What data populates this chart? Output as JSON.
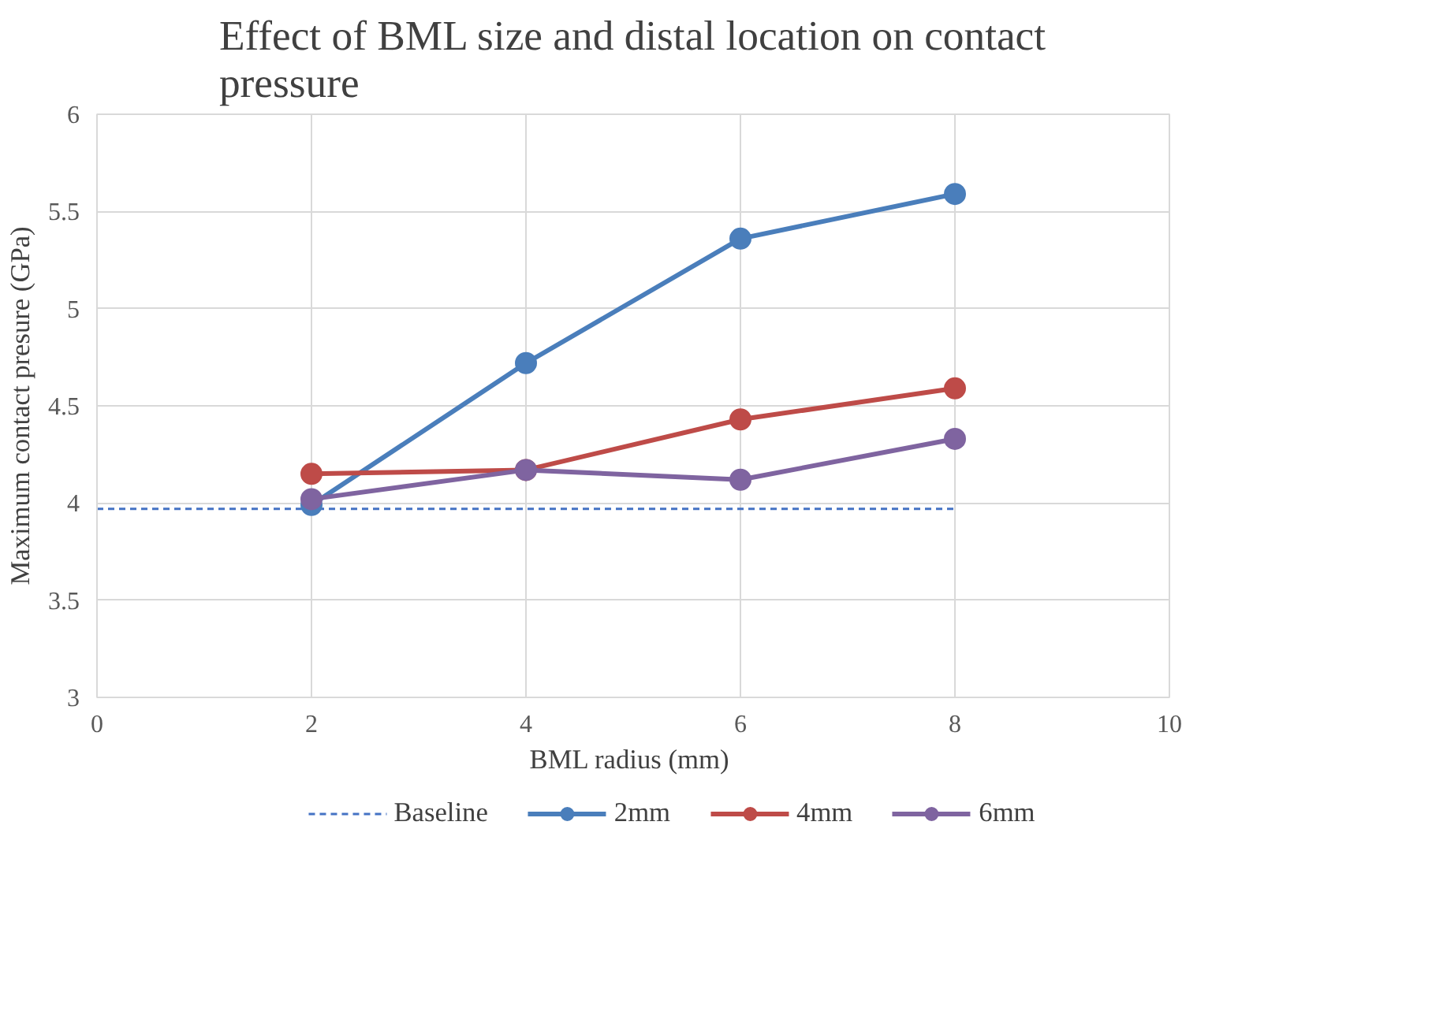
{
  "chart_data": {
    "type": "line",
    "title": "Effect of BML size and distal location on contact pressure",
    "xlabel": "BML  radius (mm)",
    "ylabel": "Maximum contact presure (GPa)",
    "x": [
      2,
      4,
      6,
      8
    ],
    "xlim": [
      0,
      10
    ],
    "xticks": [
      0,
      2,
      4,
      6,
      8,
      10
    ],
    "ylim": [
      3,
      6
    ],
    "yticks": [
      3,
      3.5,
      4,
      4.5,
      5,
      5.5,
      6
    ],
    "grid": true,
    "legend": "bottom",
    "marker": "circle",
    "line_style": "solid",
    "series": [
      {
        "name": "Baseline",
        "color": "#4472c4",
        "x": [
          0,
          8
        ],
        "values": [
          3.97,
          3.97
        ],
        "line_style": "dashed",
        "marker": "none"
      },
      {
        "name": "2mm",
        "color": "#4a7ebb",
        "values": [
          3.99,
          4.72,
          5.36,
          5.59
        ]
      },
      {
        "name": "4mm",
        "color": "#be4b48",
        "values": [
          4.15,
          4.17,
          4.43,
          4.59
        ]
      },
      {
        "name": "6mm",
        "color": "#7f64a0",
        "values": [
          4.02,
          4.17,
          4.12,
          4.33
        ]
      }
    ]
  }
}
